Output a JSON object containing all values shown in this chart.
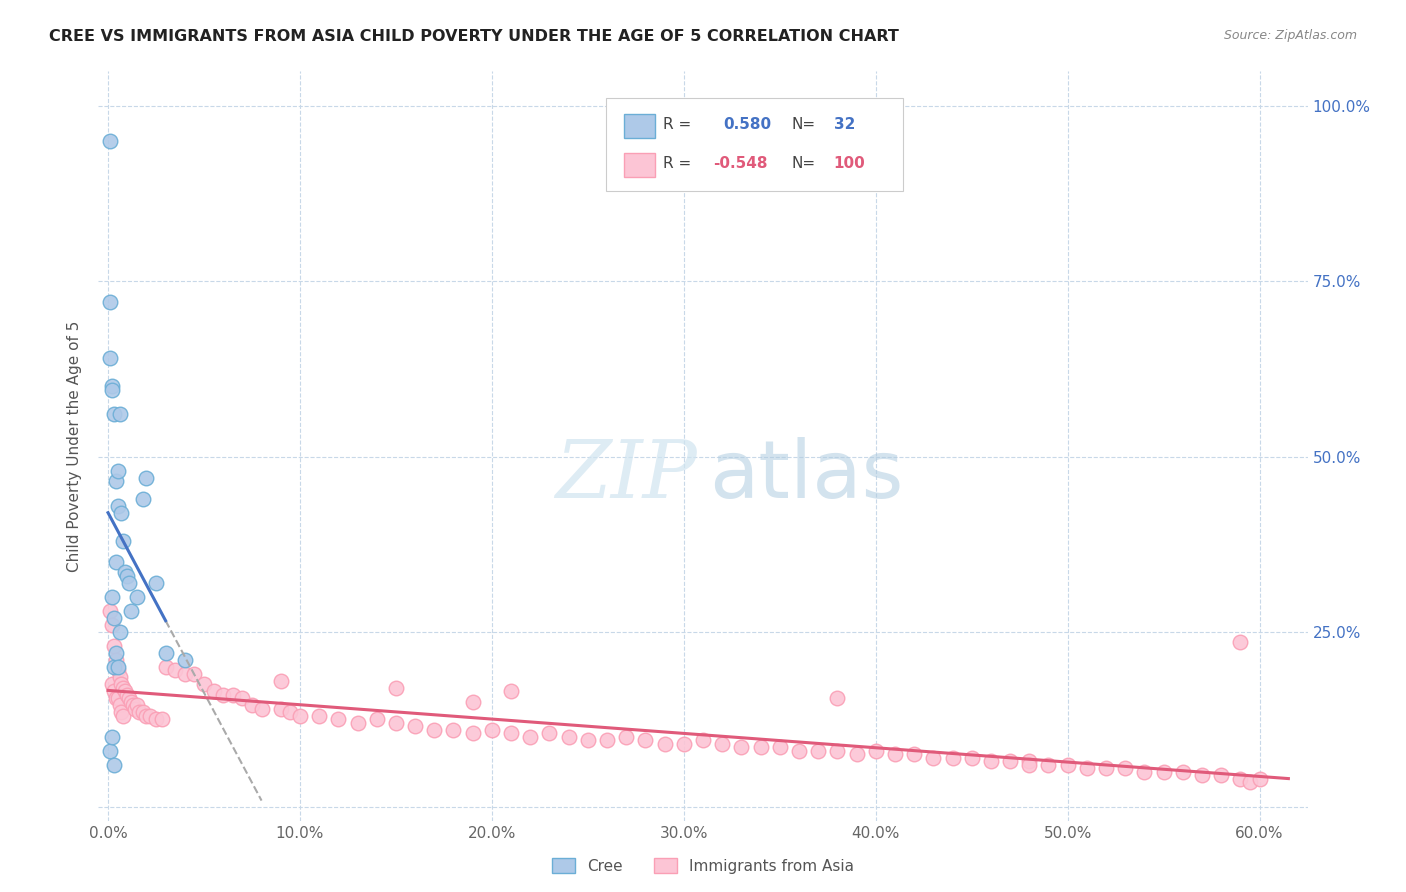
{
  "title": "CREE VS IMMIGRANTS FROM ASIA CHILD POVERTY UNDER THE AGE OF 5 CORRELATION CHART",
  "source": "Source: ZipAtlas.com",
  "ylabel": "Child Poverty Under the Age of 5",
  "xlim": [
    -0.005,
    0.625
  ],
  "ylim": [
    -0.02,
    1.05
  ],
  "xtick_vals": [
    0.0,
    0.1,
    0.2,
    0.3,
    0.4,
    0.5,
    0.6
  ],
  "ytick_vals": [
    0.0,
    0.25,
    0.5,
    0.75,
    1.0
  ],
  "right_ytick_labels": [
    "0.0%",
    "25.0%",
    "50.0%",
    "75.0%",
    "100.0%"
  ],
  "cree_color": "#6baed6",
  "cree_face": "#aec9e8",
  "asia_color": "#fa9fb5",
  "asia_face": "#fcc5d5",
  "line_blue": "#4472c4",
  "line_pink": "#e05a7a",
  "cree_R": "0.580",
  "cree_N": "32",
  "asia_R": "-0.548",
  "asia_N": "100",
  "cree_x": [
    0.001,
    0.001,
    0.001,
    0.002,
    0.002,
    0.002,
    0.002,
    0.003,
    0.003,
    0.003,
    0.003,
    0.004,
    0.004,
    0.004,
    0.005,
    0.005,
    0.005,
    0.006,
    0.006,
    0.007,
    0.008,
    0.009,
    0.01,
    0.011,
    0.012,
    0.015,
    0.018,
    0.02,
    0.025,
    0.03,
    0.04,
    0.001
  ],
  "cree_y": [
    0.72,
    0.64,
    0.08,
    0.6,
    0.595,
    0.3,
    0.1,
    0.56,
    0.27,
    0.2,
    0.06,
    0.465,
    0.35,
    0.22,
    0.48,
    0.43,
    0.2,
    0.56,
    0.25,
    0.42,
    0.38,
    0.335,
    0.33,
    0.32,
    0.28,
    0.3,
    0.44,
    0.47,
    0.32,
    0.22,
    0.21,
    0.95
  ],
  "asia_x": [
    0.001,
    0.002,
    0.002,
    0.003,
    0.003,
    0.004,
    0.004,
    0.005,
    0.005,
    0.006,
    0.006,
    0.007,
    0.007,
    0.008,
    0.008,
    0.009,
    0.01,
    0.011,
    0.012,
    0.013,
    0.014,
    0.015,
    0.016,
    0.018,
    0.02,
    0.022,
    0.025,
    0.028,
    0.03,
    0.035,
    0.04,
    0.045,
    0.05,
    0.055,
    0.06,
    0.065,
    0.07,
    0.075,
    0.08,
    0.09,
    0.095,
    0.1,
    0.11,
    0.12,
    0.13,
    0.14,
    0.15,
    0.16,
    0.17,
    0.18,
    0.19,
    0.2,
    0.21,
    0.22,
    0.23,
    0.24,
    0.25,
    0.26,
    0.27,
    0.28,
    0.29,
    0.3,
    0.31,
    0.32,
    0.33,
    0.34,
    0.35,
    0.36,
    0.37,
    0.38,
    0.39,
    0.4,
    0.41,
    0.42,
    0.43,
    0.44,
    0.45,
    0.46,
    0.47,
    0.48,
    0.49,
    0.5,
    0.51,
    0.52,
    0.53,
    0.54,
    0.55,
    0.56,
    0.57,
    0.58,
    0.59,
    0.595,
    0.6,
    0.48,
    0.38,
    0.21,
    0.19,
    0.15,
    0.09,
    0.59
  ],
  "asia_y": [
    0.28,
    0.26,
    0.175,
    0.23,
    0.165,
    0.21,
    0.155,
    0.195,
    0.155,
    0.185,
    0.145,
    0.175,
    0.135,
    0.17,
    0.13,
    0.165,
    0.16,
    0.155,
    0.15,
    0.145,
    0.14,
    0.145,
    0.135,
    0.135,
    0.13,
    0.13,
    0.125,
    0.125,
    0.2,
    0.195,
    0.19,
    0.19,
    0.175,
    0.165,
    0.16,
    0.16,
    0.155,
    0.145,
    0.14,
    0.14,
    0.135,
    0.13,
    0.13,
    0.125,
    0.12,
    0.125,
    0.12,
    0.115,
    0.11,
    0.11,
    0.105,
    0.11,
    0.105,
    0.1,
    0.105,
    0.1,
    0.095,
    0.095,
    0.1,
    0.095,
    0.09,
    0.09,
    0.095,
    0.09,
    0.085,
    0.085,
    0.085,
    0.08,
    0.08,
    0.08,
    0.075,
    0.08,
    0.075,
    0.075,
    0.07,
    0.07,
    0.07,
    0.065,
    0.065,
    0.065,
    0.06,
    0.06,
    0.055,
    0.055,
    0.055,
    0.05,
    0.05,
    0.05,
    0.045,
    0.045,
    0.04,
    0.035,
    0.04,
    0.06,
    0.155,
    0.165,
    0.15,
    0.17,
    0.18,
    0.235
  ]
}
